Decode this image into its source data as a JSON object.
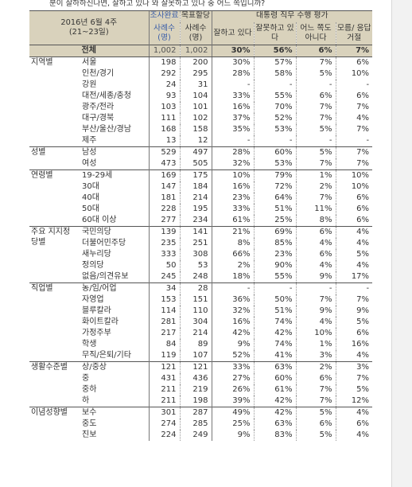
{
  "question_text": "분이 잘하하신나면, 잘하고 있나 와 잘못하고 있나 중 어느 쪽입니까?",
  "header": {
    "period_line1": "2016년 6월 4주",
    "period_line2": "(21~23일)",
    "completed_label": "조사완료",
    "cases_label_1": "사례수",
    "cases_label_1b": "(명)",
    "weighted_label": "목표할당",
    "cases_label_2": "사례수",
    "cases_label_2b": "(명)",
    "eval_title": "대통령 직무 수행 평가",
    "col_good": "잘하고 있다",
    "col_bad": "잘못하고 있다",
    "col_neither": "어느 쪽도 아니다",
    "col_dk": "모름/ 응답거절"
  },
  "total": {
    "label": "전체",
    "n1": "1,002",
    "n2": "1,002",
    "good": "30%",
    "bad": "56%",
    "neither": "6%",
    "dk": "7%"
  },
  "groups": [
    {
      "name": "지역별",
      "rows": [
        {
          "label": "서울",
          "n1": "198",
          "n2": "200",
          "good": "30%",
          "bad": "57%",
          "neither": "7%",
          "dk": "6%"
        },
        {
          "label": "인천/경기",
          "n1": "292",
          "n2": "295",
          "good": "28%",
          "bad": "58%",
          "neither": "5%",
          "dk": "10%"
        },
        {
          "label": "강원",
          "n1": "24",
          "n2": "31",
          "good": "-",
          "bad": "-",
          "neither": "-",
          "dk": "-"
        },
        {
          "label": "대전/세종/충청",
          "n1": "93",
          "n2": "104",
          "good": "33%",
          "bad": "55%",
          "neither": "6%",
          "dk": "6%"
        },
        {
          "label": "광주/전라",
          "n1": "103",
          "n2": "101",
          "good": "16%",
          "bad": "70%",
          "neither": "7%",
          "dk": "7%"
        },
        {
          "label": "대구/경북",
          "n1": "111",
          "n2": "102",
          "good": "37%",
          "bad": "52%",
          "neither": "7%",
          "dk": "4%"
        },
        {
          "label": "부산/울산/경남",
          "n1": "168",
          "n2": "158",
          "good": "35%",
          "bad": "53%",
          "neither": "5%",
          "dk": "7%"
        },
        {
          "label": "제주",
          "n1": "13",
          "n2": "12",
          "good": "-",
          "bad": "-",
          "neither": "-",
          "dk": "-"
        }
      ]
    },
    {
      "name": "성별",
      "rows": [
        {
          "label": "남성",
          "n1": "529",
          "n2": "497",
          "good": "28%",
          "bad": "60%",
          "neither": "5%",
          "dk": "7%"
        },
        {
          "label": "여성",
          "n1": "473",
          "n2": "505",
          "good": "32%",
          "bad": "53%",
          "neither": "7%",
          "dk": "7%"
        }
      ]
    },
    {
      "name": "연령별",
      "rows": [
        {
          "label": "19-29세",
          "n1": "169",
          "n2": "175",
          "good": "10%",
          "bad": "79%",
          "neither": "1%",
          "dk": "10%"
        },
        {
          "label": "30대",
          "n1": "147",
          "n2": "184",
          "good": "16%",
          "bad": "72%",
          "neither": "2%",
          "dk": "10%"
        },
        {
          "label": "40대",
          "n1": "181",
          "n2": "214",
          "good": "23%",
          "bad": "64%",
          "neither": "7%",
          "dk": "6%"
        },
        {
          "label": "50대",
          "n1": "228",
          "n2": "195",
          "good": "33%",
          "bad": "51%",
          "neither": "11%",
          "dk": "6%"
        },
        {
          "label": "60대 이상",
          "n1": "277",
          "n2": "234",
          "good": "61%",
          "bad": "25%",
          "neither": "8%",
          "dk": "6%"
        }
      ]
    },
    {
      "name": "주요 지지정당별",
      "rows": [
        {
          "label": "국민의당",
          "n1": "139",
          "n2": "141",
          "good": "21%",
          "bad": "69%",
          "neither": "6%",
          "dk": "4%"
        },
        {
          "label": "더불어민주당",
          "n1": "235",
          "n2": "251",
          "good": "8%",
          "bad": "85%",
          "neither": "4%",
          "dk": "4%"
        },
        {
          "label": "새누리당",
          "n1": "333",
          "n2": "308",
          "good": "66%",
          "bad": "23%",
          "neither": "6%",
          "dk": "5%"
        },
        {
          "label": "정의당",
          "n1": "50",
          "n2": "53",
          "good": "2%",
          "bad": "90%",
          "neither": "4%",
          "dk": "4%"
        },
        {
          "label": "없음/의견유보",
          "n1": "245",
          "n2": "248",
          "good": "18%",
          "bad": "55%",
          "neither": "9%",
          "dk": "17%"
        }
      ]
    },
    {
      "name": "직업별",
      "rows": [
        {
          "label": "농/임/어업",
          "n1": "34",
          "n2": "28",
          "good": "-",
          "bad": "-",
          "neither": "-",
          "dk": "-"
        },
        {
          "label": "자영업",
          "n1": "153",
          "n2": "151",
          "good": "36%",
          "bad": "50%",
          "neither": "7%",
          "dk": "7%"
        },
        {
          "label": "블루칼라",
          "n1": "114",
          "n2": "110",
          "good": "32%",
          "bad": "51%",
          "neither": "9%",
          "dk": "9%"
        },
        {
          "label": "화이트칼라",
          "n1": "281",
          "n2": "304",
          "good": "16%",
          "bad": "74%",
          "neither": "4%",
          "dk": "5%"
        },
        {
          "label": "가정주부",
          "n1": "217",
          "n2": "214",
          "good": "42%",
          "bad": "42%",
          "neither": "10%",
          "dk": "6%"
        },
        {
          "label": "학생",
          "n1": "84",
          "n2": "89",
          "good": "9%",
          "bad": "74%",
          "neither": "1%",
          "dk": "16%"
        },
        {
          "label": "무직/은퇴/기타",
          "n1": "119",
          "n2": "107",
          "good": "52%",
          "bad": "41%",
          "neither": "3%",
          "dk": "4%"
        }
      ]
    },
    {
      "name": "생활수준별",
      "rows": [
        {
          "label": "상/중상",
          "n1": "121",
          "n2": "121",
          "good": "33%",
          "bad": "63%",
          "neither": "2%",
          "dk": "3%"
        },
        {
          "label": "중",
          "n1": "431",
          "n2": "436",
          "good": "27%",
          "bad": "60%",
          "neither": "6%",
          "dk": "7%"
        },
        {
          "label": "중하",
          "n1": "211",
          "n2": "219",
          "good": "26%",
          "bad": "61%",
          "neither": "7%",
          "dk": "5%"
        },
        {
          "label": "하",
          "n1": "211",
          "n2": "198",
          "good": "39%",
          "bad": "42%",
          "neither": "7%",
          "dk": "12%"
        }
      ]
    },
    {
      "name": "이념성향별",
      "rows": [
        {
          "label": "보수",
          "n1": "301",
          "n2": "287",
          "good": "49%",
          "bad": "42%",
          "neither": "5%",
          "dk": "4%"
        },
        {
          "label": "중도",
          "n1": "274",
          "n2": "285",
          "good": "25%",
          "bad": "63%",
          "neither": "6%",
          "dk": "6%"
        },
        {
          "label": "진보",
          "n1": "224",
          "n2": "249",
          "good": "9%",
          "bad": "83%",
          "neither": "5%",
          "dk": "4%"
        }
      ]
    }
  ]
}
